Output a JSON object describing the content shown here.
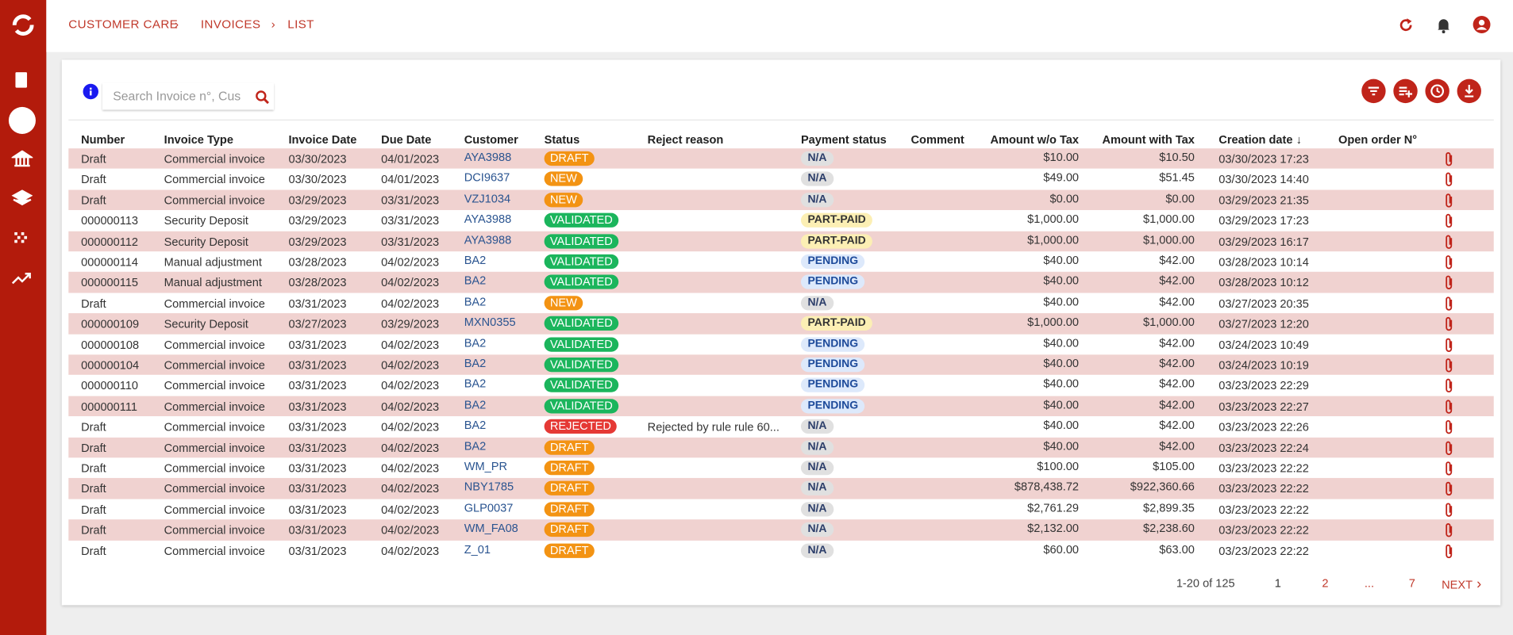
{
  "breadcrumb": [
    "CUSTOMER CARE",
    "INVOICES",
    "LIST"
  ],
  "search_placeholder": "Search Invoice n°, Cus",
  "columns": [
    "Number",
    "Invoice Type",
    "Invoice Date",
    "Due Date",
    "Customer",
    "Status",
    "Reject reason",
    "Payment status",
    "Comment",
    "Amount w/o Tax",
    "Amount with Tax",
    "Creation date",
    "Open order N°"
  ],
  "rows": [
    {
      "number": "Draft",
      "type": "Commercial invoice",
      "invoice_date": "03/30/2023",
      "due_date": "04/01/2023",
      "customer": "AYA3988",
      "status": "DRAFT",
      "payment_status": "N/A",
      "amount_without_tax": "$10.00",
      "amount_with_tax": "$10.50",
      "creation_date": "03/30/2023 17:23"
    },
    {
      "number": "Draft",
      "type": "Commercial invoice",
      "invoice_date": "03/30/2023",
      "due_date": "04/01/2023",
      "customer": "DCI9637",
      "status": "NEW",
      "payment_status": "N/A",
      "amount_without_tax": "$49.00",
      "amount_with_tax": "$51.45",
      "creation_date": "03/30/2023 14:40"
    },
    {
      "number": "Draft",
      "type": "Commercial invoice",
      "invoice_date": "03/29/2023",
      "due_date": "03/31/2023",
      "customer": "VZJ1034",
      "status": "NEW",
      "payment_status": "N/A",
      "amount_without_tax": "$0.00",
      "amount_with_tax": "$0.00",
      "creation_date": "03/29/2023 21:35"
    },
    {
      "number": "000000113",
      "type": "Security Deposit",
      "invoice_date": "03/29/2023",
      "due_date": "03/31/2023",
      "customer": "AYA3988",
      "status": "VALIDATED",
      "payment_status": "PART-PAID",
      "amount_without_tax": "$1,000.00",
      "amount_with_tax": "$1,000.00",
      "creation_date": "03/29/2023 17:23"
    },
    {
      "number": "000000112",
      "type": "Security Deposit",
      "invoice_date": "03/29/2023",
      "due_date": "03/31/2023",
      "customer": "AYA3988",
      "status": "VALIDATED",
      "payment_status": "PART-PAID",
      "amount_without_tax": "$1,000.00",
      "amount_with_tax": "$1,000.00",
      "creation_date": "03/29/2023 16:17"
    },
    {
      "number": "000000114",
      "type": "Manual adjustment",
      "invoice_date": "03/28/2023",
      "due_date": "04/02/2023",
      "customer": "BA2",
      "status": "VALIDATED",
      "payment_status": "PENDING",
      "amount_without_tax": "$40.00",
      "amount_with_tax": "$42.00",
      "creation_date": "03/28/2023 10:14"
    },
    {
      "number": "000000115",
      "type": "Manual adjustment",
      "invoice_date": "03/28/2023",
      "due_date": "04/02/2023",
      "customer": "BA2",
      "status": "VALIDATED",
      "payment_status": "PENDING",
      "amount_without_tax": "$40.00",
      "amount_with_tax": "$42.00",
      "creation_date": "03/28/2023 10:12"
    },
    {
      "number": "Draft",
      "type": "Commercial invoice",
      "invoice_date": "03/31/2023",
      "due_date": "04/02/2023",
      "customer": "BA2",
      "status": "NEW",
      "payment_status": "N/A",
      "amount_without_tax": "$40.00",
      "amount_with_tax": "$42.00",
      "creation_date": "03/27/2023 20:35"
    },
    {
      "number": "000000109",
      "type": "Security Deposit",
      "invoice_date": "03/27/2023",
      "due_date": "03/29/2023",
      "customer": "MXN0355",
      "status": "VALIDATED",
      "payment_status": "PART-PAID",
      "amount_without_tax": "$1,000.00",
      "amount_with_tax": "$1,000.00",
      "creation_date": "03/27/2023 12:20"
    },
    {
      "number": "000000108",
      "type": "Commercial invoice",
      "invoice_date": "03/31/2023",
      "due_date": "04/02/2023",
      "customer": "BA2",
      "status": "VALIDATED",
      "payment_status": "PENDING",
      "amount_without_tax": "$40.00",
      "amount_with_tax": "$42.00",
      "creation_date": "03/24/2023 10:49"
    },
    {
      "number": "000000104",
      "type": "Commercial invoice",
      "invoice_date": "03/31/2023",
      "due_date": "04/02/2023",
      "customer": "BA2",
      "status": "VALIDATED",
      "payment_status": "PENDING",
      "amount_without_tax": "$40.00",
      "amount_with_tax": "$42.00",
      "creation_date": "03/24/2023 10:19"
    },
    {
      "number": "000000110",
      "type": "Commercial invoice",
      "invoice_date": "03/31/2023",
      "due_date": "04/02/2023",
      "customer": "BA2",
      "status": "VALIDATED",
      "payment_status": "PENDING",
      "amount_without_tax": "$40.00",
      "amount_with_tax": "$42.00",
      "creation_date": "03/23/2023 22:29"
    },
    {
      "number": "000000111",
      "type": "Commercial invoice",
      "invoice_date": "03/31/2023",
      "due_date": "04/02/2023",
      "customer": "BA2",
      "status": "VALIDATED",
      "payment_status": "PENDING",
      "amount_without_tax": "$40.00",
      "amount_with_tax": "$42.00",
      "creation_date": "03/23/2023 22:27"
    },
    {
      "number": "Draft",
      "type": "Commercial invoice",
      "invoice_date": "03/31/2023",
      "due_date": "04/02/2023",
      "customer": "BA2",
      "status": "REJECTED",
      "reject_reason": "Rejected by rule rule 60...",
      "payment_status": "N/A",
      "amount_without_tax": "$40.00",
      "amount_with_tax": "$42.00",
      "creation_date": "03/23/2023 22:26"
    },
    {
      "number": "Draft",
      "type": "Commercial invoice",
      "invoice_date": "03/31/2023",
      "due_date": "04/02/2023",
      "customer": "BA2",
      "status": "DRAFT",
      "payment_status": "N/A",
      "amount_without_tax": "$40.00",
      "amount_with_tax": "$42.00",
      "creation_date": "03/23/2023 22:24"
    },
    {
      "number": "Draft",
      "type": "Commercial invoice",
      "invoice_date": "03/31/2023",
      "due_date": "04/02/2023",
      "customer": "WM_PR",
      "status": "DRAFT",
      "payment_status": "N/A",
      "amount_without_tax": "$100.00",
      "amount_with_tax": "$105.00",
      "creation_date": "03/23/2023 22:22"
    },
    {
      "number": "Draft",
      "type": "Commercial invoice",
      "invoice_date": "03/31/2023",
      "due_date": "04/02/2023",
      "customer": "NBY1785",
      "status": "DRAFT",
      "payment_status": "N/A",
      "amount_without_tax": "$878,438.72",
      "amount_with_tax": "$922,360.66",
      "creation_date": "03/23/2023 22:22"
    },
    {
      "number": "Draft",
      "type": "Commercial invoice",
      "invoice_date": "03/31/2023",
      "due_date": "04/02/2023",
      "customer": "GLP0037",
      "status": "DRAFT",
      "payment_status": "N/A",
      "amount_without_tax": "$2,761.29",
      "amount_with_tax": "$2,899.35",
      "creation_date": "03/23/2023 22:22"
    },
    {
      "number": "Draft",
      "type": "Commercial invoice",
      "invoice_date": "03/31/2023",
      "due_date": "04/02/2023",
      "customer": "WM_FA08",
      "status": "DRAFT",
      "payment_status": "N/A",
      "amount_without_tax": "$2,132.00",
      "amount_with_tax": "$2,238.60",
      "creation_date": "03/23/2023 22:22"
    },
    {
      "number": "Draft",
      "type": "Commercial invoice",
      "invoice_date": "03/31/2023",
      "due_date": "04/02/2023",
      "customer": "Z_01",
      "status": "DRAFT",
      "payment_status": "N/A",
      "amount_without_tax": "$60.00",
      "amount_with_tax": "$63.00",
      "creation_date": "03/23/2023 22:22"
    }
  ],
  "pagination": {
    "range": "1-20 of 125",
    "pages": [
      "1",
      "2",
      "...",
      "7"
    ],
    "next": "NEXT"
  }
}
